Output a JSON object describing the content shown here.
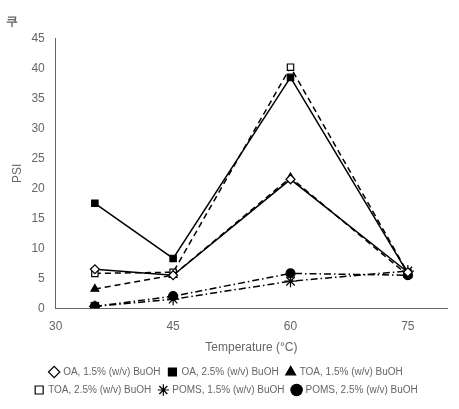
{
  "chart_data": {
    "type": "line",
    "title": "쿠",
    "xlabel": "Temperature (°C)",
    "ylabel": "PSI",
    "x": [
      35,
      45,
      60,
      75
    ],
    "series": [
      {
        "name": "OA, 1.5% (w/v) BuOH",
        "color": "#000000",
        "values": [
          6.5,
          5.5,
          21.5,
          6.0
        ],
        "marker": "diamond-open",
        "line_style": "solid"
      },
      {
        "name": "OA, 2.5% (w/v) BuOH",
        "color": "#000000",
        "values": [
          17.5,
          8.3,
          38.5,
          5.8
        ],
        "marker": "square-filled",
        "line_style": "solid"
      },
      {
        "name": "TOA, 1.5% (w/v) BuOH",
        "color": "#000000",
        "values": [
          3.2,
          5.5,
          21.8,
          5.5
        ],
        "marker": "triangle-filled",
        "line_style": "dashed"
      },
      {
        "name": "TOA, 2.5% (w/v) BuOH",
        "color": "#000000",
        "values": [
          5.8,
          6.0,
          40.2,
          5.9
        ],
        "marker": "square-open",
        "line_style": "dashed"
      },
      {
        "name": "POMS, 1.5% (w/v) BuOH",
        "color": "#000000",
        "values": [
          0.3,
          1.5,
          4.5,
          6.2
        ],
        "marker": "star-filled",
        "line_style": "dashdot"
      },
      {
        "name": "POMS, 2.5% (w/v) BuOH",
        "color": "#000000",
        "values": [
          0.3,
          2.0,
          5.8,
          5.5
        ],
        "marker": "circle-filled",
        "line_style": "dashdot"
      }
    ],
    "xlim": [
      30,
      80
    ],
    "ylim": [
      0,
      45
    ],
    "xticks": [
      30,
      45,
      60,
      75
    ],
    "yticks": [
      0,
      5,
      10,
      15,
      20,
      25,
      30,
      35,
      40,
      45
    ],
    "grid": false,
    "legend": "bottom"
  }
}
